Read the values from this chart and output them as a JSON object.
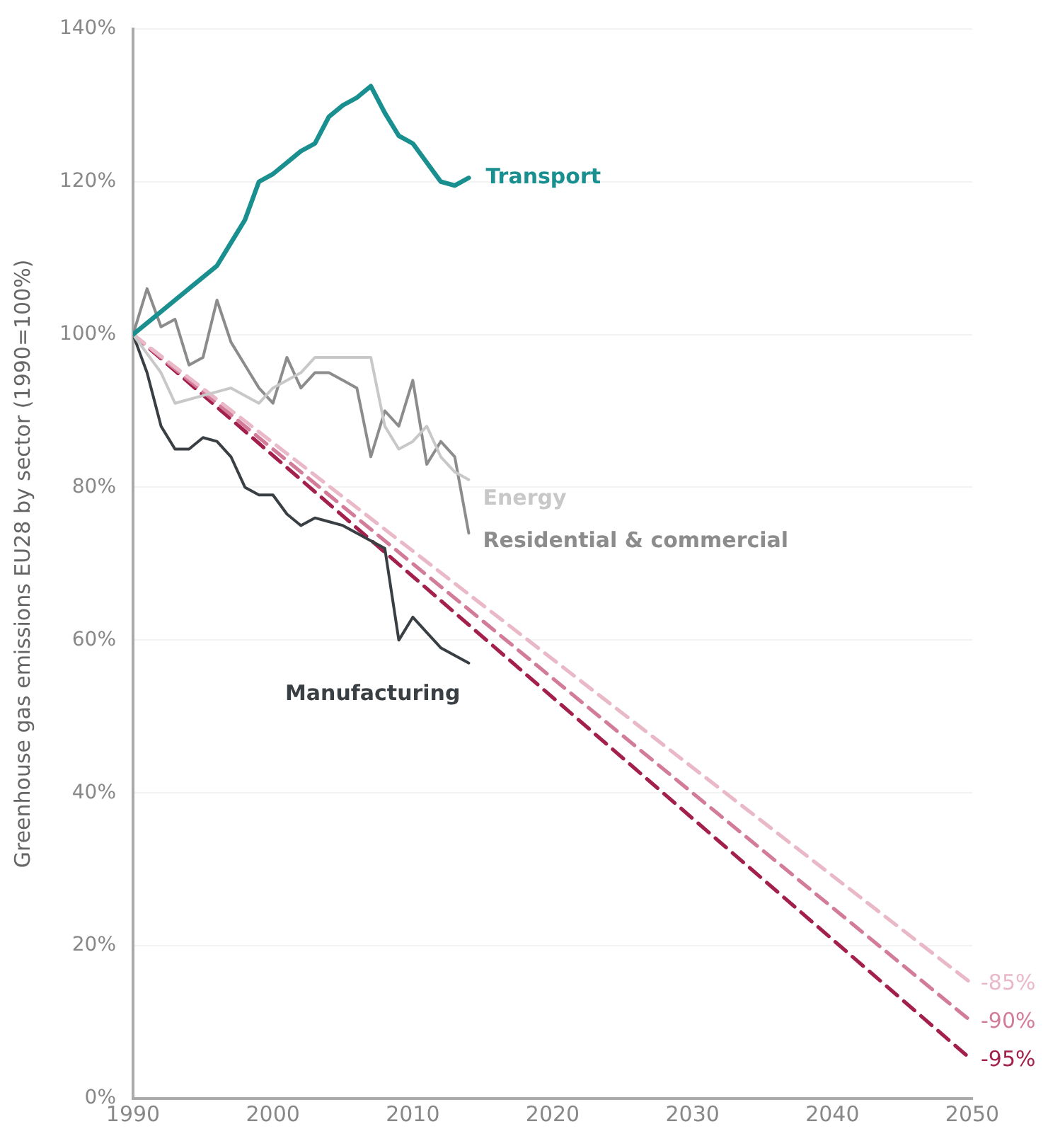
{
  "chart_data": {
    "type": "line",
    "ylabel": "Greenhouse gas emissions EU28 by sector (1990=100%)",
    "xlim": [
      1990,
      2050
    ],
    "xticks": [
      1990,
      2000,
      2010,
      2020,
      2030,
      2040,
      2050
    ],
    "ylim": [
      0,
      140
    ],
    "yticks": [
      {
        "value": 0,
        "label": "0%"
      },
      {
        "value": 20,
        "label": "20%"
      },
      {
        "value": 40,
        "label": "40%"
      },
      {
        "value": 60,
        "label": "60%"
      },
      {
        "value": 80,
        "label": "80%"
      },
      {
        "value": 100,
        "label": "100%"
      },
      {
        "value": 120,
        "label": "120%"
      },
      {
        "value": 140,
        "label": "140%"
      }
    ],
    "grid": "y",
    "legend": false,
    "marker": "none",
    "series": [
      {
        "name": "Transport",
        "color": "#1a8f8f",
        "x": [
          1990,
          1992,
          1994,
          1996,
          1997,
          1998,
          1999,
          2000,
          2001,
          2002,
          2003,
          2004,
          2005,
          2006,
          2007,
          2008,
          2009,
          2010,
          2011,
          2012,
          2013,
          2014
        ],
        "values": [
          100,
          103,
          106,
          109,
          112,
          115,
          120,
          121,
          122.5,
          124,
          125,
          128.5,
          130,
          131,
          132.5,
          129,
          126,
          125,
          122.5,
          120,
          119.5,
          120.5
        ]
      },
      {
        "name": "Energy",
        "color": "#c8c8c8",
        "x": [
          1990,
          1992,
          1993,
          1995,
          1997,
          1999,
          2000,
          2002,
          2003,
          2006,
          2007,
          2008,
          2009,
          2010,
          2011,
          2012,
          2013,
          2014
        ],
        "values": [
          100,
          95,
          91,
          92,
          93,
          91,
          93,
          95,
          97,
          97,
          97,
          88,
          85,
          86,
          88,
          84,
          82,
          81
        ]
      },
      {
        "name": "Residential & commercial",
        "color": "#8c8c8c",
        "x": [
          1990,
          1991,
          1992,
          1993,
          1994,
          1995,
          1996,
          1997,
          1998,
          1999,
          2000,
          2001,
          2002,
          2003,
          2004,
          2005,
          2006,
          2007,
          2008,
          2009,
          2010,
          2011,
          2012,
          2013,
          2014
        ],
        "values": [
          100,
          106,
          101,
          102,
          96,
          97,
          104.5,
          99,
          96,
          93,
          91,
          97,
          93,
          95,
          95,
          94,
          93,
          84,
          90,
          88,
          94,
          83,
          86,
          84,
          74
        ]
      },
      {
        "name": "Manufacturing",
        "color": "#3a3f44",
        "x": [
          1990,
          1991,
          1992,
          1993,
          1994,
          1995,
          1996,
          1997,
          1998,
          1999,
          2000,
          2001,
          2002,
          2003,
          2004,
          2005,
          2006,
          2007,
          2008,
          2009,
          2010,
          2011,
          2012,
          2013,
          2014
        ],
        "values": [
          100,
          95,
          88,
          85,
          85,
          86.5,
          86,
          84,
          80,
          79,
          79,
          76.5,
          75,
          76,
          75.5,
          75,
          74,
          73,
          72,
          60,
          63,
          61,
          59,
          58,
          57
        ]
      },
      {
        "name": "-85%",
        "color": "#eab9c8",
        "line_style": "dashed",
        "x": [
          1990,
          2050
        ],
        "values": [
          100,
          15
        ]
      },
      {
        "name": "-90%",
        "color": "#d27c9a",
        "line_style": "dashed",
        "x": [
          1990,
          2050
        ],
        "values": [
          100,
          10
        ]
      },
      {
        "name": "-95%",
        "color": "#a3204c",
        "line_style": "dashed",
        "x": [
          1990,
          2050
        ],
        "values": [
          100,
          5
        ]
      }
    ]
  }
}
